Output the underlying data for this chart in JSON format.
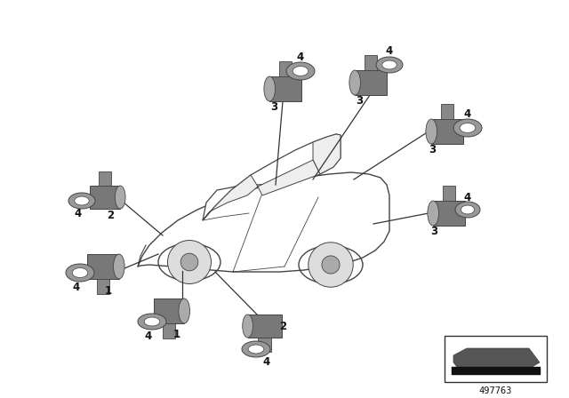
{
  "bg_color": "#ffffff",
  "part_number": "497763",
  "fig_width": 6.4,
  "fig_height": 4.48,
  "sensor_dark": "#7a7a7a",
  "sensor_mid": "#999999",
  "sensor_light": "#bbbbbb",
  "ring_color": "#aaaaaa",
  "ring_inner": "#ffffff",
  "line_color": "#333333",
  "label_color": "#111111",
  "car_edge": "#444444",
  "label_fontsize": 8.5,
  "leader_lw": 0.9,
  "car_lw": 1.0
}
